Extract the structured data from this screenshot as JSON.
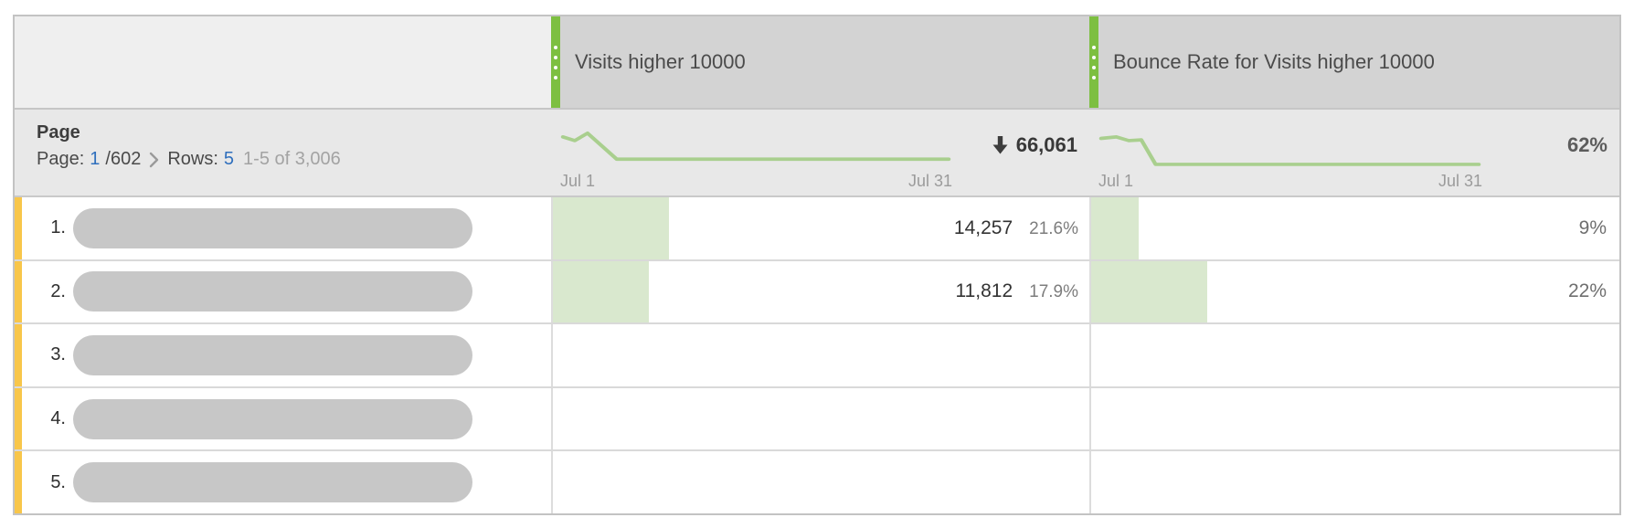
{
  "header": {
    "columns": [
      {
        "label": "Visits higher 10000"
      },
      {
        "label": "Bounce Rate for Visits higher 10000"
      }
    ]
  },
  "subheader": {
    "dimension_label": "Page",
    "pagination": {
      "page_label": "Page:",
      "current_page": "1",
      "page_count": "/602",
      "rows_label": "Rows:",
      "rows_value": "5",
      "range_text": "1-5 of 3,006"
    },
    "metrics": [
      {
        "start_label": "Jul 1",
        "end_label": "Jul 31",
        "total": "66,061",
        "trend": "down"
      },
      {
        "start_label": "Jul 1",
        "end_label": "Jul 31",
        "total": "62%",
        "trend": "none"
      }
    ]
  },
  "rows": [
    {
      "num": "1.",
      "visits_value": "14,257",
      "visits_pct": "21.6%",
      "visits_bar_pct": 21.6,
      "bounce_value": "9%",
      "bounce_bar_pct": 9
    },
    {
      "num": "2.",
      "visits_value": "11,812",
      "visits_pct": "17.9%",
      "visits_bar_pct": 17.9,
      "bounce_value": "22%",
      "bounce_bar_pct": 22
    },
    {
      "num": "3.",
      "visits_value": "",
      "visits_pct": "",
      "visits_bar_pct": 0,
      "bounce_value": "",
      "bounce_bar_pct": 0
    },
    {
      "num": "4.",
      "visits_value": "",
      "visits_pct": "",
      "visits_bar_pct": 0,
      "bounce_value": "",
      "bounce_bar_pct": 0
    },
    {
      "num": "5.",
      "visits_value": "",
      "visits_pct": "",
      "visits_bar_pct": 0,
      "bounce_value": "",
      "bounce_bar_pct": 0
    }
  ],
  "colors": {
    "accent_green": "#7dbf41",
    "sparkline_green": "#a9cf8e",
    "bar_fill_green": "#d9e8ce",
    "row_stripe_yellow": "#f8c64a",
    "link_blue": "#2f6fbd",
    "header_gray": "#d3d3d3",
    "subheader_gray": "#e8e8e8"
  },
  "chart_data": [
    {
      "type": "line",
      "title": "Visits higher 10000 trend",
      "xlabel_start": "Jul 1",
      "xlabel_end": "Jul 31",
      "total": 66061,
      "shape_note": "starts high with small bump then drops to flat low plateau",
      "points": [
        [
          3,
          22
        ],
        [
          16,
          27
        ],
        [
          30,
          17
        ],
        [
          62,
          52
        ],
        [
          426,
          52
        ]
      ]
    },
    {
      "type": "line",
      "title": "Bounce Rate for Visits higher 10000 trend",
      "xlabel_start": "Jul 1",
      "xlabel_end": "Jul 31",
      "total": "62%",
      "shape_note": "starts high, small dip, then drops to flat low plateau",
      "points": [
        [
          3,
          24
        ],
        [
          20,
          22
        ],
        [
          34,
          27
        ],
        [
          48,
          26
        ],
        [
          64,
          59
        ],
        [
          426,
          59
        ]
      ]
    }
  ]
}
